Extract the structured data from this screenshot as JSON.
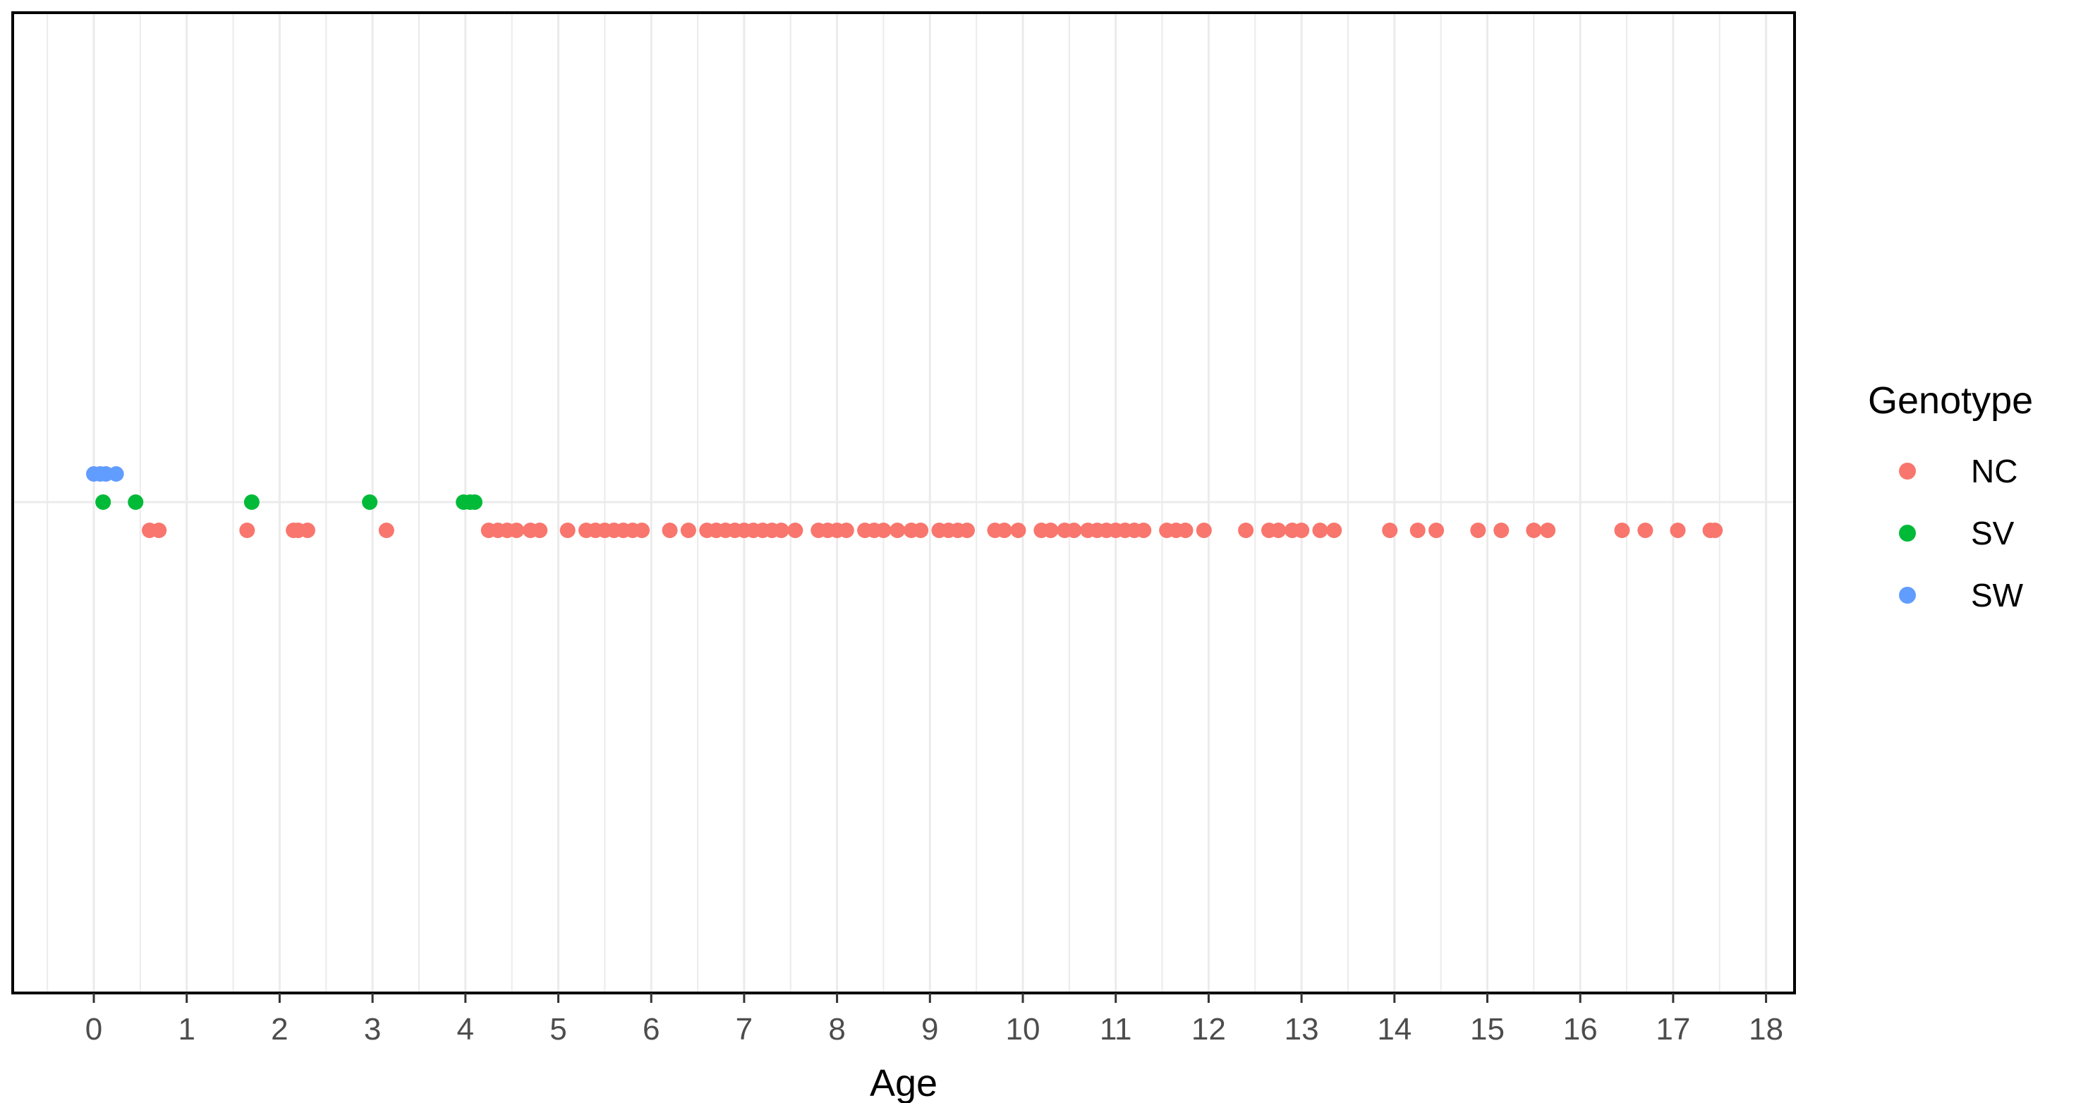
{
  "chart_data": {
    "type": "scatter",
    "xlabel": "Age",
    "ylabel": "",
    "xlim": [
      -0.5,
      18.3
    ],
    "x_ticks": [
      0,
      1,
      2,
      3,
      4,
      5,
      6,
      7,
      8,
      9,
      10,
      11,
      12,
      13,
      14,
      15,
      16,
      17,
      18
    ],
    "x_tick_labels": [
      "0",
      "1",
      "2",
      "3",
      "4",
      "5",
      "6",
      "7",
      "8",
      "9",
      "10",
      "11",
      "12",
      "13",
      "14",
      "15",
      "16",
      "17",
      "18"
    ],
    "grid": true,
    "y_axis_visible": false,
    "legend": {
      "title": "Genotype",
      "position": "right",
      "entries": [
        {
          "name": "NC",
          "color": "#F8766D"
        },
        {
          "name": "SV",
          "color": "#00BA38"
        },
        {
          "name": "SW",
          "color": "#619CFF"
        }
      ]
    },
    "series": [
      {
        "name": "NC",
        "color": "#F8766D",
        "vertical_offset": -1,
        "x": [
          0.6,
          0.7,
          1.65,
          2.15,
          2.2,
          2.3,
          3.15,
          4.25,
          4.35,
          4.45,
          4.55,
          4.7,
          4.8,
          5.1,
          5.3,
          5.4,
          5.5,
          5.6,
          5.7,
          5.8,
          5.9,
          6.2,
          6.4,
          6.6,
          6.7,
          6.8,
          6.9,
          7.0,
          7.1,
          7.2,
          7.3,
          7.4,
          7.55,
          7.8,
          7.9,
          8.0,
          8.1,
          8.3,
          8.4,
          8.5,
          8.65,
          8.8,
          8.9,
          9.1,
          9.2,
          9.3,
          9.4,
          9.7,
          9.8,
          9.95,
          10.2,
          10.3,
          10.45,
          10.55,
          10.7,
          10.8,
          10.9,
          11.0,
          11.1,
          11.2,
          11.3,
          11.55,
          11.65,
          11.75,
          11.95,
          12.4,
          12.65,
          12.75,
          12.9,
          13.0,
          13.2,
          13.35,
          13.95,
          14.25,
          14.45,
          14.9,
          15.15,
          15.5,
          15.65,
          16.45,
          16.7,
          17.05,
          17.4,
          17.45
        ]
      },
      {
        "name": "SV",
        "color": "#00BA38",
        "vertical_offset": 0,
        "x": [
          0.1,
          0.45,
          1.7,
          2.97,
          3.98,
          4.05,
          4.1
        ]
      },
      {
        "name": "SW",
        "color": "#619CFF",
        "vertical_offset": 1,
        "x": [
          0.0,
          0.07,
          0.13,
          0.24
        ]
      }
    ]
  }
}
